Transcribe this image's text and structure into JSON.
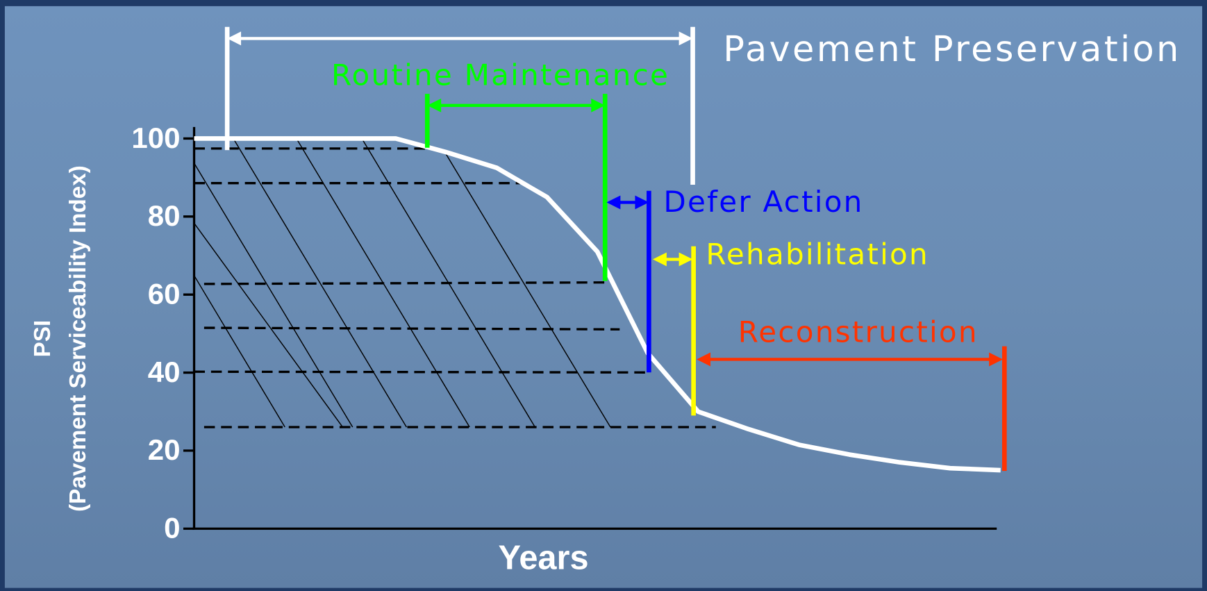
{
  "chart_data": {
    "type": "line",
    "ylabel": [
      "PSI",
      "(Pavement Serviceability Index)"
    ],
    "xlabel": "Years",
    "categories": [
      null,
      null,
      null,
      null,
      null,
      null,
      null,
      null,
      null,
      null,
      null,
      null,
      null,
      null,
      null,
      null,
      null
    ],
    "values": [
      100,
      100,
      100,
      100,
      100,
      96.5,
      92.5,
      85,
      71,
      45,
      30,
      25.5,
      21.5,
      19,
      17,
      15.5,
      15
    ],
    "color": "#ffffff",
    "ylim": [
      0,
      100
    ],
    "yticks": [
      0,
      20,
      40,
      60,
      80,
      100
    ],
    "annotations": [
      {
        "label": "Pavement Preservation",
        "color": "#ffffff"
      },
      {
        "label": "Routine Maintenance",
        "color": "#00ff00"
      },
      {
        "label": "Defer Action",
        "color": "#0000ff"
      },
      {
        "label": "Rehabilitation",
        "color": "#ffff00"
      },
      {
        "label": "Reconstruction",
        "color": "#ff3300"
      }
    ]
  }
}
